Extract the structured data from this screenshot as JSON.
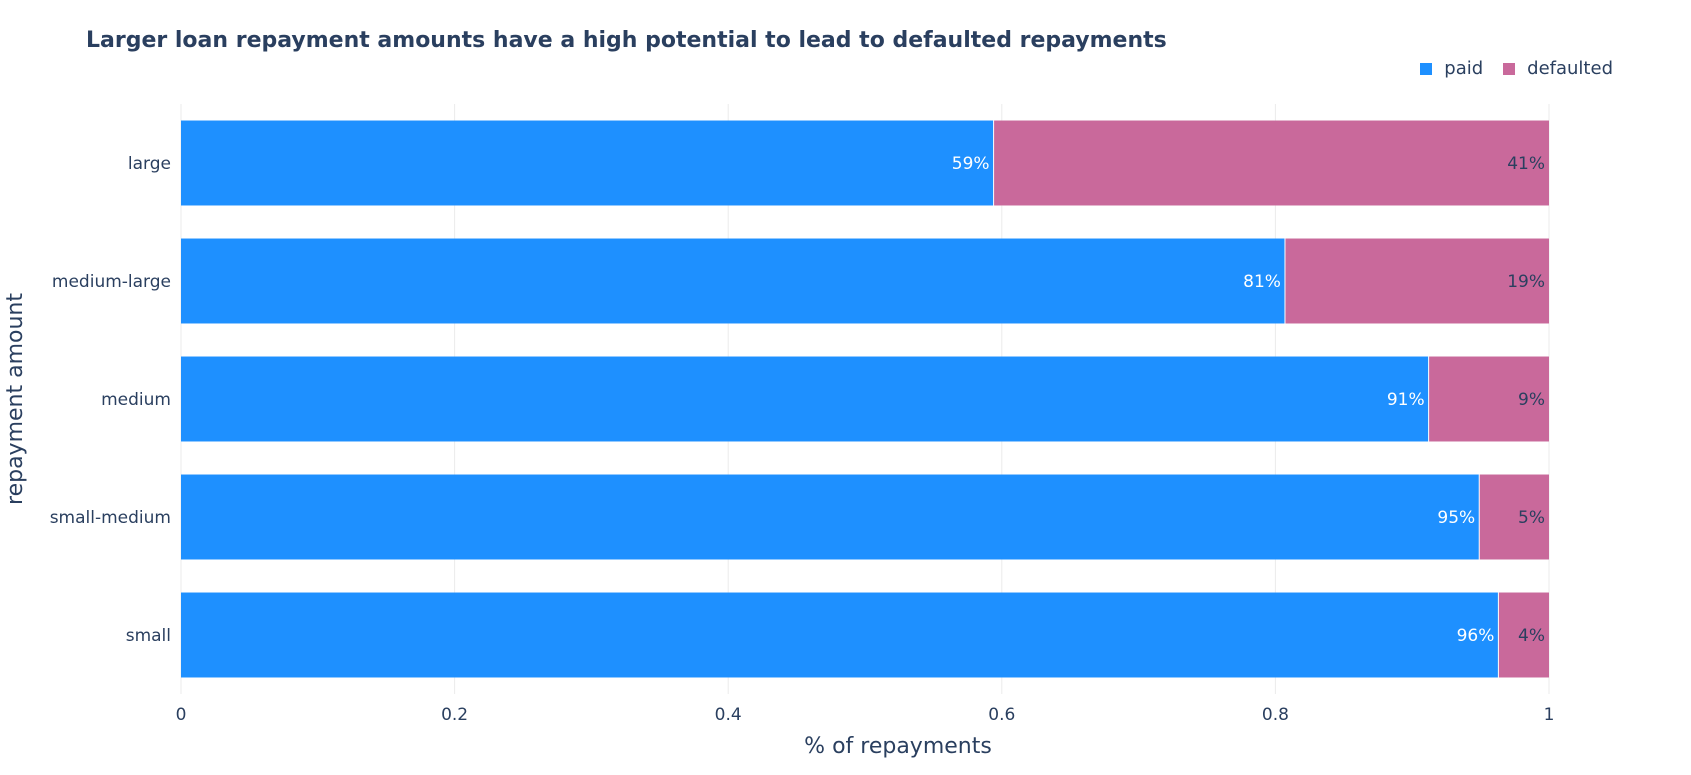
{
  "colors": {
    "paid": "#1e90ff",
    "defaulted": "#c9699b",
    "text": "#2a3f5f",
    "grid": "#ebebeb"
  },
  "chart_data": {
    "type": "bar",
    "orientation": "horizontal",
    "stacked": true,
    "title": "Larger loan repayment amounts have a high potential to lead to defaulted repayments",
    "xlabel": "% of repayments",
    "ylabel": "repayment amount",
    "xlim": [
      0,
      1
    ],
    "xticks": [
      "0",
      "0.2",
      "0.4",
      "0.6",
      "0.8",
      "1"
    ],
    "xtick_values": [
      0,
      0.2,
      0.4,
      0.6,
      0.8,
      1
    ],
    "grid": true,
    "legend_position": "top-right",
    "categories": [
      "small",
      "small-medium",
      "medium",
      "medium-large",
      "large"
    ],
    "series": [
      {
        "name": "paid",
        "values": [
          0.963,
          0.949,
          0.912,
          0.807,
          0.594
        ],
        "labels": [
          "96%",
          "95%",
          "91%",
          "81%",
          "59%"
        ]
      },
      {
        "name": "defaulted",
        "values": [
          0.037,
          0.051,
          0.088,
          0.193,
          0.406
        ],
        "labels": [
          "4%",
          "5%",
          "9%",
          "19%",
          "41%"
        ]
      }
    ]
  }
}
